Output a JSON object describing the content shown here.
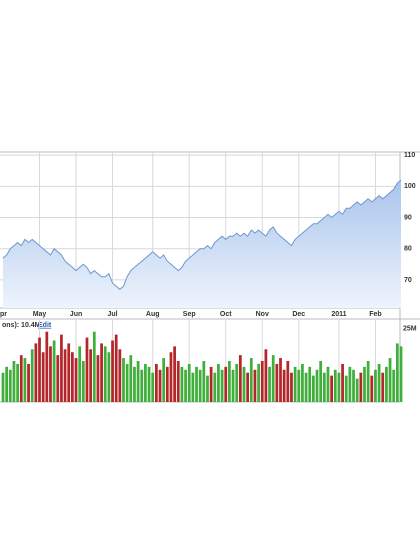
{
  "chart_data": [
    {
      "type": "area",
      "line_color": "#6f96cf",
      "fill_color": "#b9d0f0",
      "grid": true,
      "categories": [
        "pr",
        null,
        null,
        null,
        null,
        null,
        null,
        null,
        null,
        null,
        "May",
        null,
        null,
        null,
        null,
        null,
        null,
        null,
        null,
        null,
        "Jun",
        null,
        null,
        null,
        null,
        null,
        null,
        null,
        null,
        null,
        "Jul",
        null,
        null,
        null,
        null,
        null,
        null,
        null,
        null,
        null,
        null,
        "Aug",
        null,
        null,
        null,
        null,
        null,
        null,
        null,
        null,
        null,
        "Sep",
        null,
        null,
        null,
        null,
        null,
        null,
        null,
        null,
        null,
        "Oct",
        null,
        null,
        null,
        null,
        null,
        null,
        null,
        null,
        null,
        "Nov",
        null,
        null,
        null,
        null,
        null,
        null,
        null,
        null,
        null,
        "Dec",
        null,
        null,
        null,
        null,
        null,
        null,
        null,
        null,
        null,
        null,
        "2011",
        null,
        null,
        null,
        null,
        null,
        null,
        null,
        null,
        null,
        "Feb",
        null,
        null,
        null,
        null,
        null,
        null,
        null
      ],
      "values": [
        77,
        78,
        80,
        81,
        82,
        81,
        83,
        82,
        83,
        82,
        81,
        80,
        79,
        78,
        80,
        79,
        78,
        76,
        75,
        74,
        73,
        74,
        75,
        74,
        72,
        73,
        72,
        71,
        71,
        72,
        69,
        68,
        67,
        68,
        71,
        73,
        74,
        75,
        76,
        77,
        78,
        79,
        78,
        77,
        78,
        76,
        75,
        74,
        73,
        74,
        76,
        77,
        78,
        79,
        80,
        80,
        81,
        80,
        82,
        83,
        84,
        83,
        84,
        84,
        85,
        84,
        85,
        84,
        86,
        85,
        86,
        85,
        84,
        86,
        87,
        85,
        84,
        83,
        82,
        81,
        83,
        84,
        85,
        86,
        87,
        88,
        88,
        89,
        90,
        91,
        90,
        91,
        92,
        91,
        93,
        93,
        94,
        95,
        94,
        95,
        96,
        95,
        96,
        97,
        96,
        97,
        98,
        99,
        101,
        102
      ],
      "ylim": [
        61,
        111
      ],
      "yticks": [
        70,
        80,
        90,
        100,
        110
      ]
    },
    {
      "type": "bar",
      "label": "ons): 10.4M",
      "link": "Edit",
      "up_color": "#3fae3a",
      "down_color": "#b3262a",
      "values": [
        10,
        12,
        11,
        14,
        13,
        16,
        15,
        13,
        18,
        20,
        22,
        17,
        24,
        19,
        21,
        16,
        23,
        18,
        20,
        17,
        15,
        19,
        14,
        22,
        18,
        24,
        16,
        20,
        19,
        17,
        21,
        23,
        18,
        15,
        13,
        16,
        12,
        14,
        11,
        13,
        12,
        10,
        13,
        11,
        15,
        12,
        17,
        19,
        14,
        12,
        11,
        13,
        10,
        12,
        11,
        14,
        9,
        12,
        10,
        13,
        11,
        12,
        14,
        11,
        13,
        16,
        12,
        10,
        15,
        11,
        13,
        14,
        18,
        12,
        16,
        13,
        15,
        11,
        14,
        10,
        12,
        11,
        13,
        10,
        12,
        9,
        11,
        14,
        10,
        12,
        9,
        11,
        10,
        13,
        9,
        12,
        11,
        8,
        10,
        12,
        14,
        9,
        11,
        13,
        10,
        12,
        15,
        11,
        20,
        19
      ],
      "ylim": [
        0,
        28
      ],
      "yticks": [
        {
          "value": 25,
          "label": "25M"
        }
      ]
    }
  ]
}
